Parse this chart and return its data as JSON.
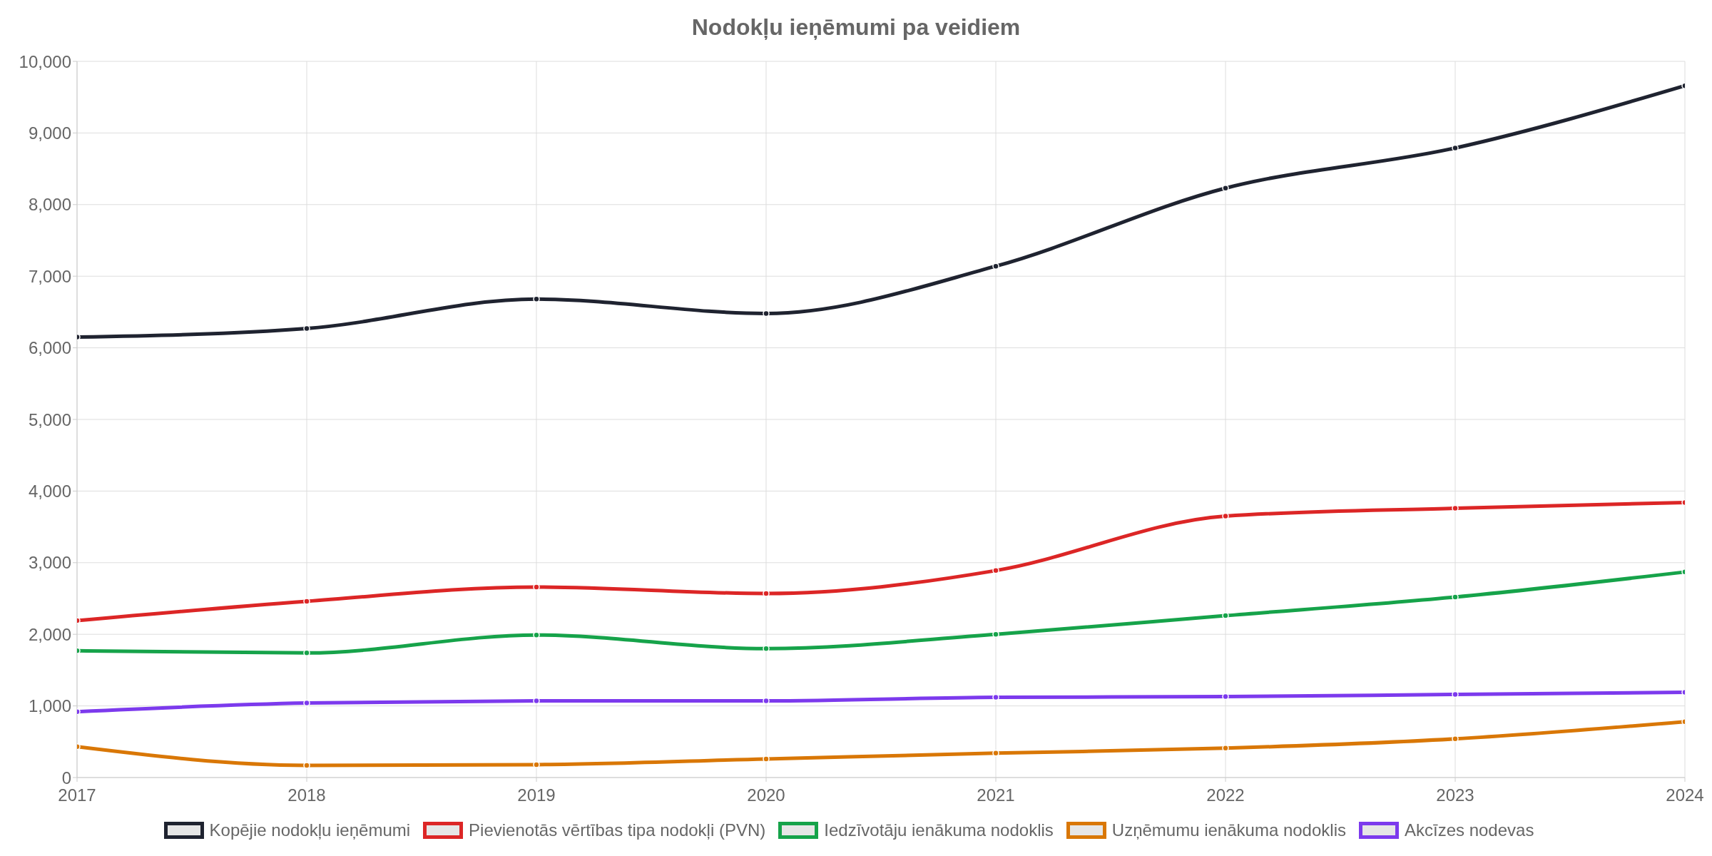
{
  "chart_data": {
    "type": "line",
    "title": "Nodokļu ieņēmumi pa veidiem",
    "x": [
      2017,
      2018,
      2019,
      2020,
      2021,
      2022,
      2023,
      2024
    ],
    "xlim": [
      2017,
      2024
    ],
    "xticks": [
      2017,
      2018,
      2019,
      2020,
      2021,
      2022,
      2023,
      2024
    ],
    "ylim": [
      0,
      10000
    ],
    "yticks": [
      0,
      {
        "value": 1000,
        "label": "1,000"
      },
      {
        "value": 2000,
        "label": "2,000"
      },
      {
        "value": 3000,
        "label": "3,000"
      },
      {
        "value": 4000,
        "label": "4,000"
      },
      {
        "value": 5000,
        "label": "5,000"
      },
      {
        "value": 6000,
        "label": "6,000"
      },
      {
        "value": 7000,
        "label": "7,000"
      },
      {
        "value": 8000,
        "label": "8,000"
      },
      {
        "value": 9000,
        "label": "9,000"
      },
      {
        "value": 10000,
        "label": "10,000"
      }
    ],
    "grid": true,
    "legend": "bottom",
    "marker": "circle",
    "line_style": "solid",
    "series": [
      {
        "name": "Kopējie nodokļu ieņēmumi",
        "color": "#1f2330",
        "values": [
          6150,
          6270,
          6680,
          6480,
          7140,
          8230,
          8790,
          9660
        ]
      },
      {
        "name": "Pievienotās vērtības tipa nodokļi (PVN)",
        "color": "#dc2626",
        "values": [
          2190,
          2460,
          2660,
          2570,
          2890,
          3650,
          3760,
          3840
        ]
      },
      {
        "name": "Iedzīvotāju ienākuma nodoklis",
        "color": "#16a34a",
        "values": [
          1770,
          1740,
          1990,
          1800,
          2000,
          2260,
          2520,
          2870
        ]
      },
      {
        "name": "Uzņēmumu ienākuma nodoklis",
        "color": "#d97706",
        "values": [
          430,
          170,
          180,
          260,
          340,
          410,
          540,
          780
        ]
      },
      {
        "name": "Akcīzes nodevas",
        "color": "#7c3aed",
        "values": [
          920,
          1040,
          1070,
          1070,
          1120,
          1130,
          1160,
          1190
        ]
      }
    ]
  }
}
